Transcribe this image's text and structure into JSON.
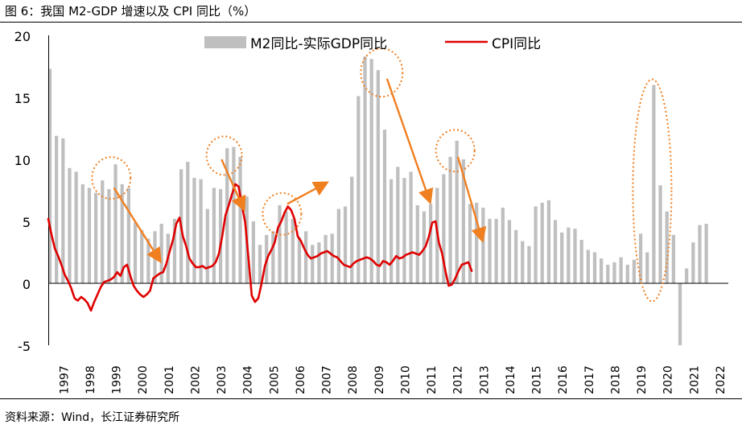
{
  "figure": {
    "title": "图 6：我国 M2-GDP 增速以及 CPI 同比（%）",
    "source": "资料来源：Wind，长江证券研究所"
  },
  "colors": {
    "bar": "#bfbfbf",
    "line": "#e00000",
    "annotation": "#f07f20",
    "axis": "#000000"
  },
  "chart_data": {
    "type": "bar",
    "title": "我国 M2-GDP 增速以及 CPI 同比（%）",
    "xlabel": "",
    "ylabel": "",
    "ylim": [
      -5,
      20
    ],
    "yticks": [
      "20",
      "15",
      "10",
      "5",
      "0",
      "-5"
    ],
    "x_start": 1997,
    "x_end": 2022.9,
    "year_labels": [
      "1997",
      "1998",
      "1999",
      "2000",
      "2001",
      "2002",
      "2003",
      "2004",
      "2005",
      "2006",
      "2007",
      "2008",
      "2009",
      "2010",
      "2011",
      "2012",
      "2013",
      "2014",
      "2015",
      "2016",
      "2017",
      "2018",
      "2019",
      "2020",
      "2021",
      "2022"
    ],
    "legend": {
      "position": "top",
      "bar_label": "M2同比-实际GDP同比",
      "line_label": "CPI同比"
    },
    "series": [
      {
        "name": "M2同比-实际GDP同比",
        "type": "bar",
        "start": 1997.0,
        "step": 0.25,
        "values": [
          17.3,
          11.9,
          11.7,
          9.3,
          9.0,
          8.0,
          7.7,
          7.3,
          8.3,
          7.6,
          9.6,
          8.0,
          7.7,
          4.9,
          4.3,
          3.6,
          4.2,
          4.8,
          4.0,
          5.2,
          9.2,
          9.8,
          8.5,
          8.4,
          6.0,
          7.7,
          7.6,
          10.9,
          11.0,
          10.2,
          7.0,
          5.0,
          3.1,
          3.9,
          4.2,
          6.3,
          5.8,
          5.2,
          3.7,
          4.2,
          3.1,
          3.3,
          3.9,
          4.0,
          6.0,
          6.2,
          8.6,
          15.1,
          18.3,
          18.1,
          17.2,
          12.4,
          8.4,
          9.4,
          8.5,
          9.0,
          6.3,
          5.8,
          6.4,
          7.7,
          8.8,
          10.2,
          11.5,
          10.0,
          6.4,
          6.5,
          6.1,
          5.2,
          5.2,
          6.1,
          5.1,
          4.3,
          3.4,
          3.0,
          6.2,
          6.5,
          6.7,
          5.1,
          4.1,
          4.5,
          4.4,
          3.5,
          2.7,
          2.5,
          2.0,
          1.5,
          1.7,
          2.1,
          1.5,
          1.9,
          4.0,
          2.5,
          16.0,
          7.9,
          5.8,
          3.9,
          -5.0,
          1.2,
          3.3,
          4.7,
          4.8
        ]
      },
      {
        "name": "CPI同比",
        "type": "line",
        "start": 1997.0,
        "step": 0.125,
        "values": [
          5.2,
          3.9,
          2.8,
          2.2,
          1.5,
          0.7,
          0.2,
          -0.4,
          -1.2,
          -1.4,
          -1.1,
          -1.3,
          -1.6,
          -2.2,
          -1.5,
          -0.9,
          -0.3,
          0.1,
          0.2,
          0.3,
          0.5,
          0.9,
          0.6,
          1.3,
          1.5,
          0.6,
          -0.2,
          -0.6,
          -0.9,
          -1.1,
          -0.9,
          -0.6,
          0.4,
          0.6,
          0.8,
          0.9,
          1.6,
          2.6,
          3.5,
          4.8,
          5.3,
          3.8,
          3.0,
          2.0,
          1.6,
          1.3,
          1.3,
          1.4,
          1.2,
          1.3,
          1.4,
          1.7,
          2.4,
          3.8,
          5.5,
          6.3,
          7.2,
          8.0,
          7.8,
          6.3,
          4.9,
          2.0,
          -1.0,
          -1.5,
          -1.2,
          0.0,
          1.4,
          2.2,
          2.7,
          3.3,
          4.5,
          5.0,
          5.7,
          6.2,
          5.9,
          5.2,
          3.8,
          3.4,
          2.8,
          2.3,
          2.0,
          2.1,
          2.2,
          2.4,
          2.5,
          2.6,
          2.4,
          2.2,
          2.1,
          1.8,
          1.5,
          1.4,
          1.3,
          1.6,
          1.8,
          1.9,
          2.0,
          2.1,
          2.0,
          1.8,
          1.5,
          1.4,
          1.8,
          1.7,
          1.5,
          1.8,
          2.2,
          2.0,
          2.1,
          2.3,
          2.4,
          2.5,
          2.4,
          2.3,
          2.6,
          3.0,
          3.8,
          4.9,
          5.0,
          3.3,
          2.4,
          1.0,
          -0.2,
          -0.1,
          0.4,
          1.0,
          1.5,
          1.6,
          1.7,
          1.0
        ]
      }
    ],
    "annotations": {
      "circles": [
        {
          "x": 1999.4,
          "y": 8.5
        },
        {
          "x": 2003.7,
          "y": 10.3
        },
        {
          "x": 2005.9,
          "y": 5.6
        },
        {
          "x": 2009.7,
          "y": 17.0
        },
        {
          "x": 2012.5,
          "y": 10.7
        },
        {
          "x": 2020.0,
          "y": 7.5
        }
      ],
      "arrows": [
        {
          "from": [
            1999.5,
            7.7
          ],
          "to": [
            2001.2,
            2.0
          ]
        },
        {
          "from": [
            2003.6,
            10.0
          ],
          "to": [
            2004.4,
            6.2
          ]
        },
        {
          "from": [
            2006.1,
            6.4
          ],
          "to": [
            2007.5,
            8.0
          ]
        },
        {
          "from": [
            2009.9,
            16.5
          ],
          "to": [
            2011.5,
            6.8
          ]
        },
        {
          "from": [
            2012.6,
            10.2
          ],
          "to": [
            2013.5,
            3.7
          ]
        }
      ]
    }
  }
}
